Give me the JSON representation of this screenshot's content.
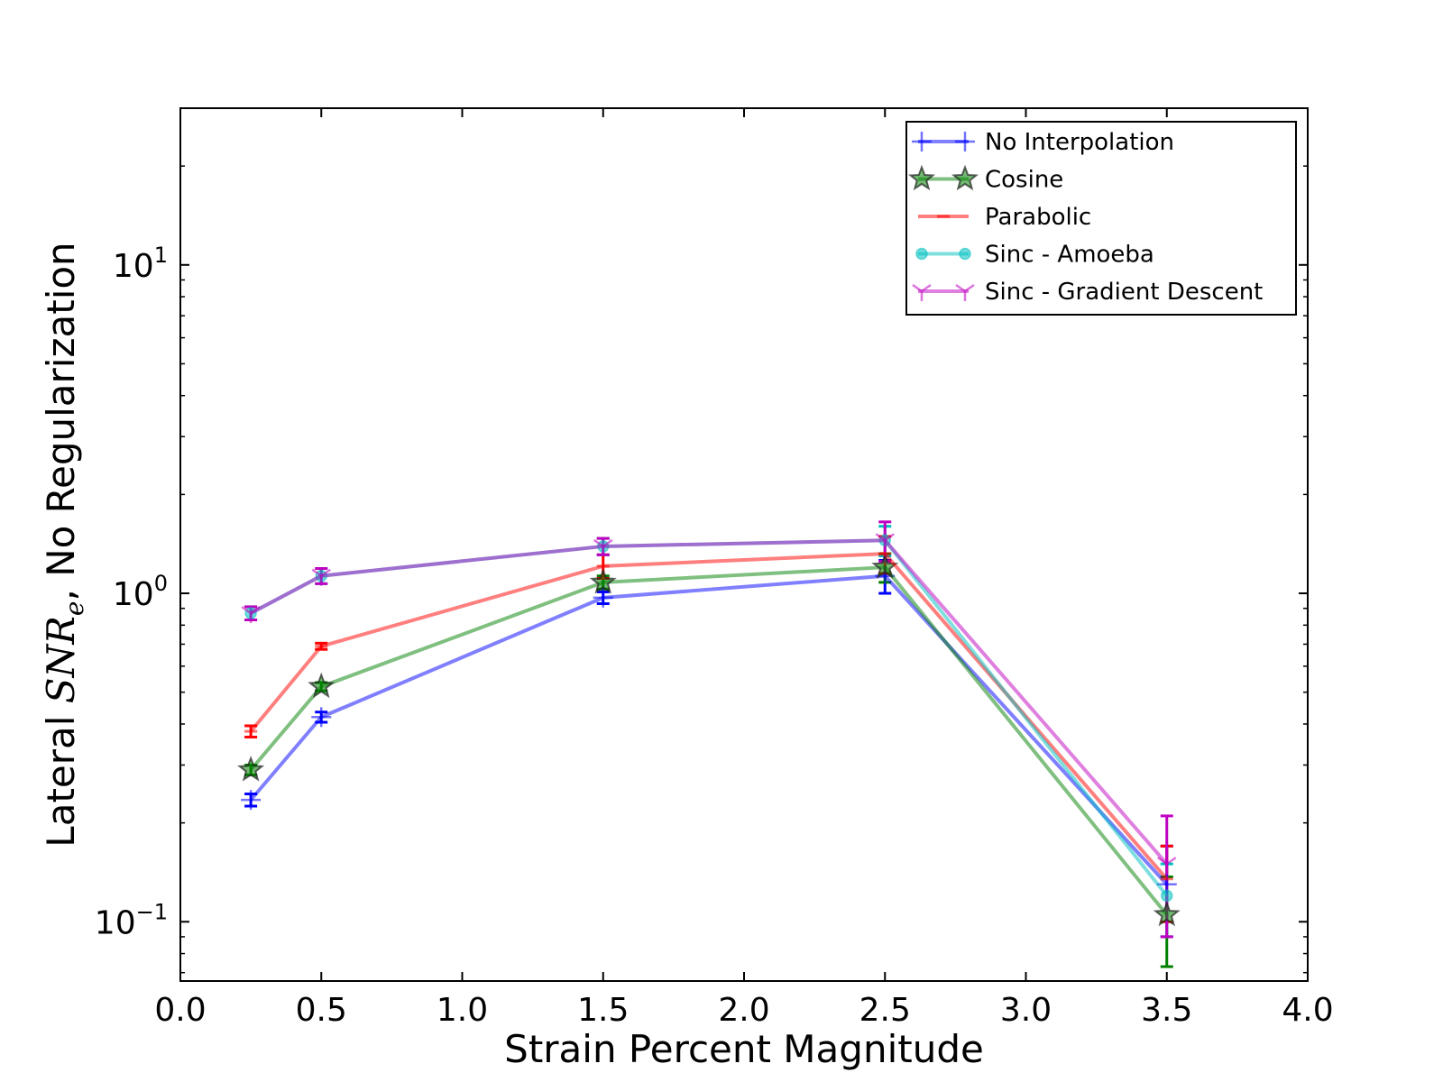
{
  "chart_data": {
    "type": "line",
    "xlabel": "Strain Percent Magnitude",
    "ylabel_prefix": "Lateral ",
    "ylabel_math": "SNR",
    "ylabel_sub": "e",
    "ylabel_suffix": ", No Regularization",
    "xlim": [
      0.0,
      4.0
    ],
    "ylim": [
      0.066,
      30
    ],
    "yscale": "log",
    "x_ticks": [
      0.0,
      0.5,
      1.0,
      1.5,
      2.0,
      2.5,
      3.0,
      3.5,
      4.0
    ],
    "x_tick_labels": [
      "0.0",
      "0.5",
      "1.0",
      "1.5",
      "2.0",
      "2.5",
      "3.0",
      "3.5",
      "4.0"
    ],
    "y_ticks": [
      0.1,
      1,
      10
    ],
    "y_tick_bases": [
      "10",
      "10",
      "10"
    ],
    "y_tick_exps": [
      "−1",
      "0",
      "1"
    ],
    "legend_position": "top-right",
    "x": [
      0.25,
      0.5,
      1.5,
      2.5,
      3.5
    ],
    "series": [
      {
        "name": "No Interpolation",
        "color": "#0000ff",
        "marker": "plus",
        "values": [
          0.235,
          0.42,
          0.97,
          1.13,
          0.13
        ],
        "errors": [
          0.01,
          0.015,
          0.04,
          0.13,
          0.04
        ]
      },
      {
        "name": "Cosine",
        "color": "#008000",
        "marker": "star",
        "values": [
          0.29,
          0.52,
          1.08,
          1.2,
          0.105
        ],
        "errors": [
          0.01,
          0.015,
          0.05,
          0.12,
          0.032
        ]
      },
      {
        "name": "Parabolic",
        "color": "#ff0000",
        "marker": "hline",
        "values": [
          0.38,
          0.69,
          1.21,
          1.32,
          0.135
        ],
        "errors": [
          0.015,
          0.015,
          0.1,
          0.17,
          0.035
        ]
      },
      {
        "name": "Sinc - Amoeba",
        "color": "#00bfbf",
        "marker": "circle",
        "values": [
          0.87,
          1.13,
          1.39,
          1.45,
          0.12
        ],
        "errors": [
          0.04,
          0.06,
          0.08,
          0.15,
          0.03
        ]
      },
      {
        "name": "Sinc - Gradient Descent",
        "color": "#bf00bf",
        "marker": "tri",
        "values": [
          0.87,
          1.13,
          1.39,
          1.45,
          0.15
        ],
        "errors": [
          0.04,
          0.06,
          0.08,
          0.2,
          0.06
        ]
      }
    ]
  }
}
